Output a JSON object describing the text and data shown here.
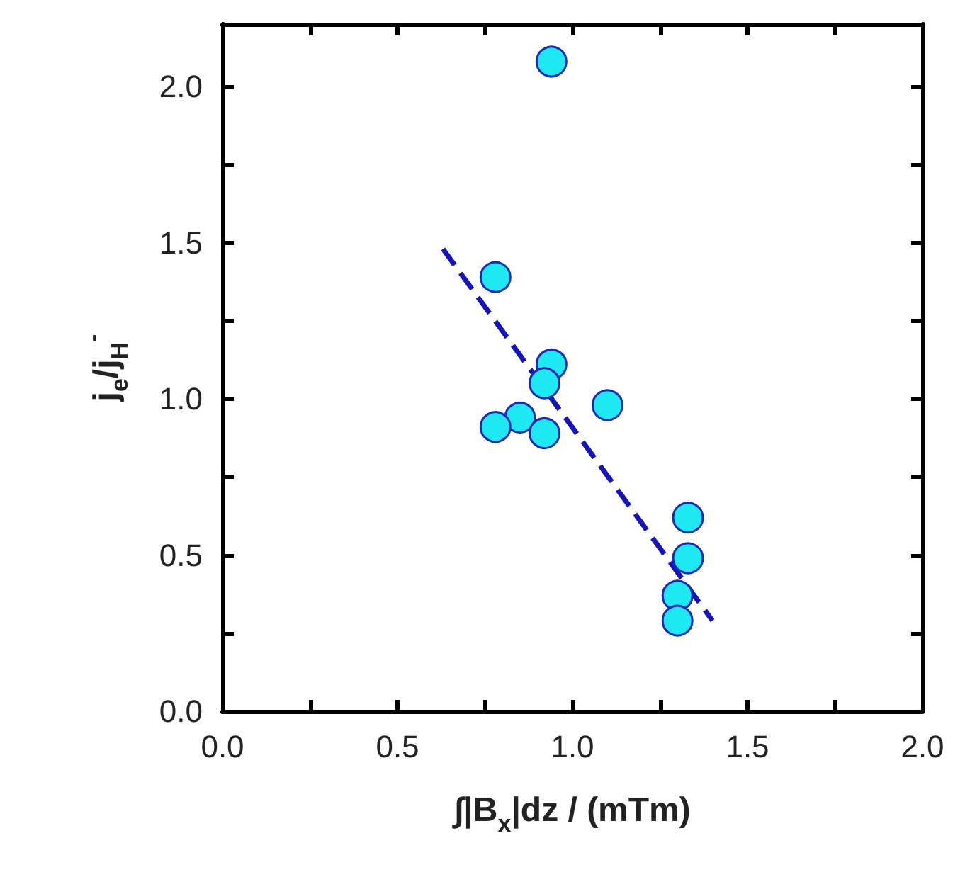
{
  "chart_data": {
    "type": "scatter",
    "xlabel": "∫|B$_{x}$|dz / (mTm)",
    "ylabel": "j$_{e}$/j$_{H}$$^{-}$",
    "series": [
      {
        "type": "scatter",
        "color": "#1ee8f2",
        "marker": "circle",
        "x": [
          0.94,
          0.78,
          0.94,
          0.92,
          1.1,
          0.85,
          0.78,
          0.92,
          1.33,
          1.33,
          1.3,
          1.3
        ],
        "values": [
          2.08,
          1.39,
          1.11,
          1.05,
          0.98,
          0.94,
          0.91,
          0.89,
          0.62,
          0.49,
          0.37,
          0.29
        ]
      },
      {
        "type": "line",
        "color": "#1414b8",
        "marker": "none",
        "line_style": "dashed",
        "x": [
          0.63,
          1.4
        ],
        "values": [
          1.48,
          0.29
        ]
      }
    ],
    "xlim": [
      0,
      2.0
    ],
    "ylim": [
      0,
      2.2
    ],
    "xticks": [
      {
        "value": 0,
        "label": "0.0"
      },
      {
        "value": 0.25,
        "label": null
      },
      0.5,
      {
        "value": 0.75,
        "label": null
      },
      {
        "value": 1,
        "label": "1.0"
      },
      {
        "value": 1.25,
        "label": null
      },
      1.5,
      {
        "value": 1.75,
        "label": null
      },
      {
        "value": 2,
        "label": "2.0"
      }
    ],
    "yticks": [
      {
        "value": 0,
        "label": "0.0"
      },
      {
        "value": 0.25,
        "label": null
      },
      0.5,
      {
        "value": 0.75,
        "label": null
      },
      {
        "value": 1,
        "label": "1.0"
      },
      {
        "value": 1.25,
        "label": null
      },
      1.5,
      {
        "value": 1.75,
        "label": null
      },
      {
        "value": 2,
        "label": "2.0"
      }
    ],
    "grid": false
  }
}
